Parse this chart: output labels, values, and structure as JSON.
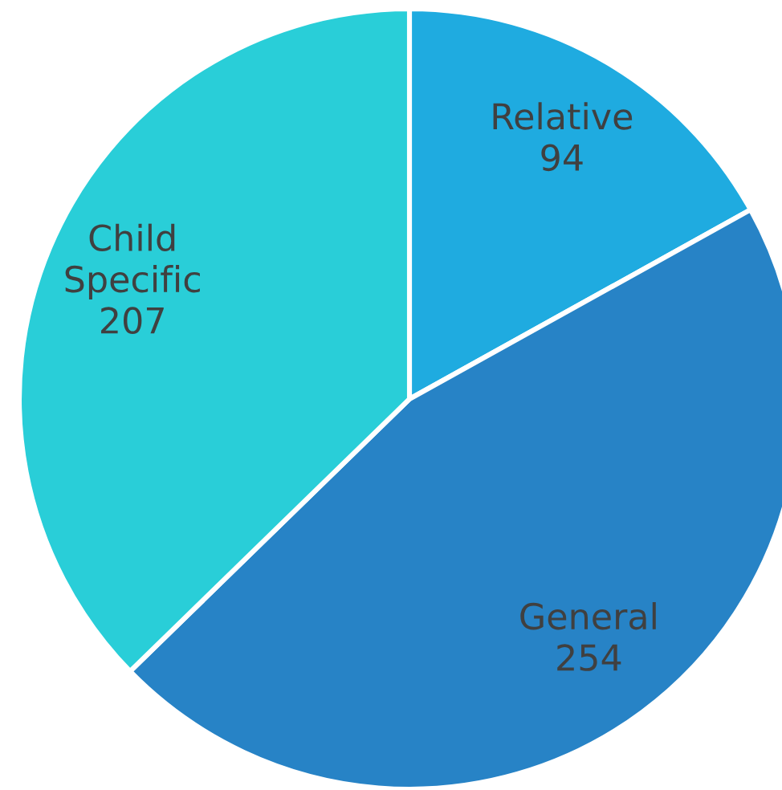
{
  "chart_data": {
    "type": "pie",
    "categories": [
      "Relative",
      "General",
      "Child Specific"
    ],
    "values": [
      94,
      254,
      207
    ],
    "colors": [
      "#1fabe0",
      "#2783c6",
      "#29ced8"
    ],
    "data_labels": true
  }
}
